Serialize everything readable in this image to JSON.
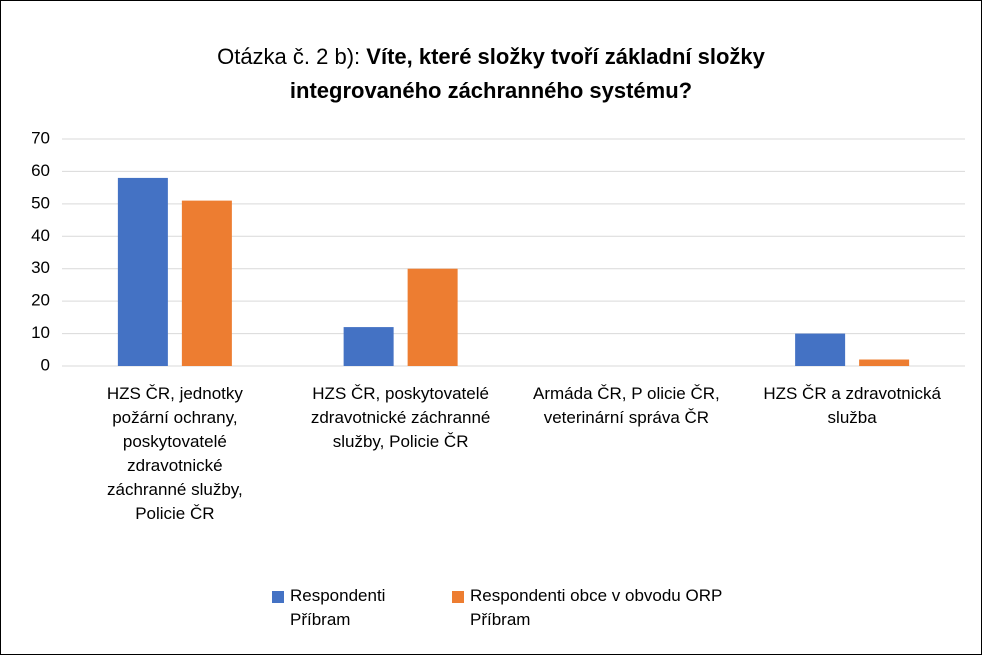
{
  "chart_data": {
    "type": "bar",
    "title": {
      "label": "Otázka č. 2 b):",
      "question_lines": [
        "Víte, které složky tvoří základní složky",
        "integrovaného záchranného systému?"
      ]
    },
    "categories": [
      "HZS ČR, jednotky požární ochrany, poskytovatelé zdravotnické záchranné služby, Policie ČR",
      "HZS ČR, poskytovatelé zdravotnické záchranné služby, Policie ČR",
      "Armáda ČR, P olicie ČR, veterinární správa ČR",
      "HZS ČR a zdravotnická služba"
    ],
    "series": [
      {
        "name": "Respondenti Příbram",
        "color": "#4472c4",
        "values": [
          58,
          12,
          0,
          10
        ]
      },
      {
        "name": "Respondenti obce v obvodu ORP Příbram",
        "color": "#ed7d31",
        "values": [
          51,
          30,
          0,
          2
        ]
      }
    ],
    "ylim": [
      0,
      70
    ],
    "yticks": [
      0,
      10,
      20,
      30,
      40,
      50,
      60,
      70
    ],
    "grid": true,
    "legend": "bottom"
  }
}
